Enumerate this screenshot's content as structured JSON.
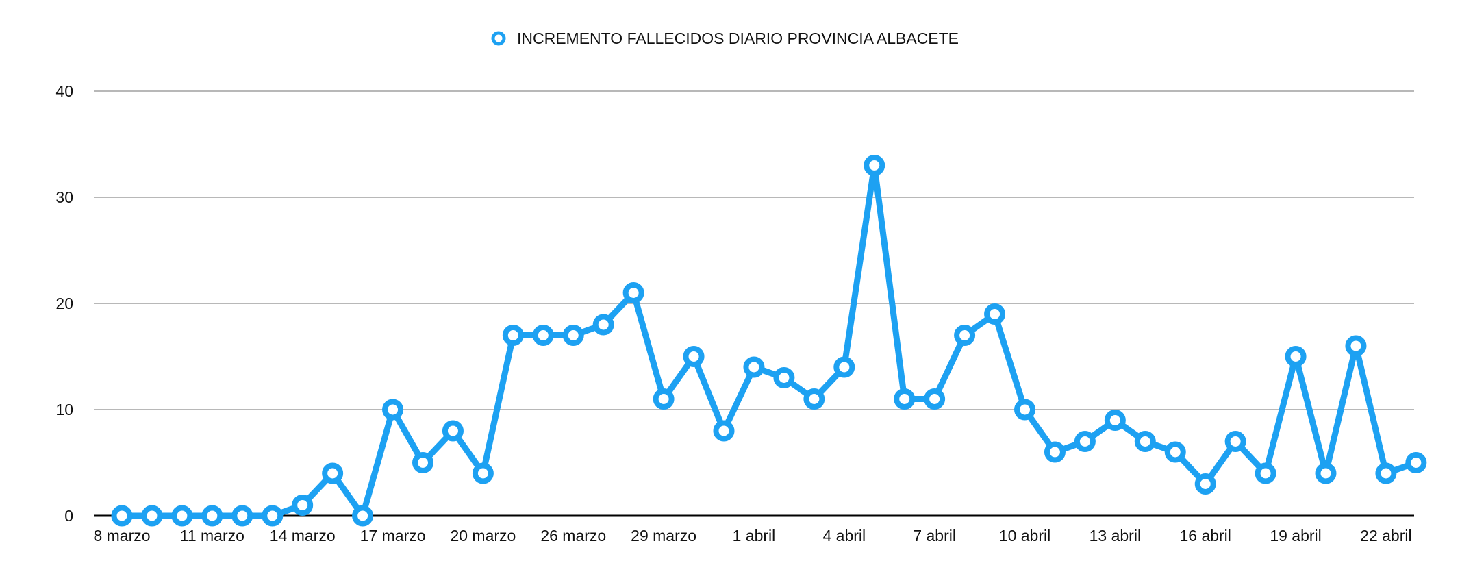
{
  "chart_data": {
    "type": "line",
    "title": "",
    "xlabel": "",
    "ylabel": "",
    "ylim": [
      0,
      40
    ],
    "yticks": [
      0,
      10,
      20,
      30,
      40
    ],
    "grid": true,
    "legend_position": "top-center",
    "x_tick_labels": [
      "8 marzo",
      "11 marzo",
      "14 marzo",
      "17 marzo",
      "20 marzo",
      "26 marzo",
      "29 marzo",
      "1 abril",
      "4 abril",
      "7 abril",
      "10 abril",
      "13 abril",
      "16 abril",
      "19 abril",
      "22 abril"
    ],
    "x_tick_every": 3,
    "series": [
      {
        "name": "INCREMENTO FALLECIDOS DIARIO PROVINCIA ALBACETE",
        "color": "#1da1f2",
        "values": [
          0,
          0,
          0,
          0,
          0,
          0,
          1,
          4,
          0,
          10,
          5,
          8,
          4,
          17,
          17,
          17,
          18,
          21,
          11,
          15,
          8,
          14,
          13,
          11,
          14,
          33,
          11,
          11,
          17,
          19,
          10,
          6,
          7,
          9,
          7,
          6,
          3,
          7,
          4,
          15,
          4,
          16,
          4,
          5
        ]
      }
    ]
  }
}
